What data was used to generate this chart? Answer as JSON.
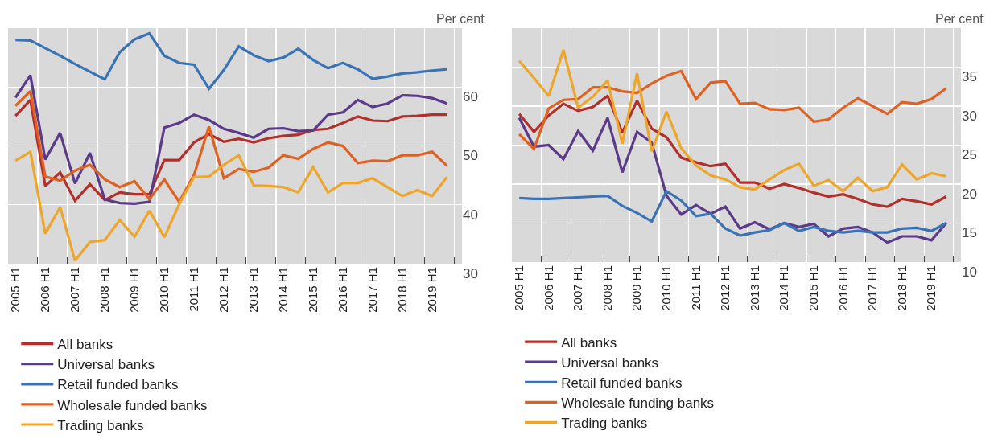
{
  "chart_data": [
    {
      "type": "line",
      "ylabel": "Per cent",
      "categories": [
        "2005 H1",
        null,
        "2006 H1",
        null,
        "2007 H1",
        null,
        "2008 H1",
        null,
        "2009 H1",
        null,
        "2010 H1",
        null,
        "2011 H1",
        null,
        "2012 H1",
        null,
        "2013 H1",
        null,
        "2014 H1",
        null,
        "2015 H1",
        null,
        "2016 H1",
        null,
        "2017 H1",
        null,
        "2018 H1",
        null,
        "2019 H1",
        null
      ],
      "ylim": [
        30,
        70
      ],
      "yticks": [
        30,
        40,
        50,
        60
      ],
      "grid": true,
      "legend": "bottom",
      "series": [
        {
          "name": "All banks",
          "color": "#b22f2b",
          "values": [
            55.1,
            57.8,
            43.2,
            45.5,
            40.7,
            43.5,
            40.8,
            42.1,
            41.8,
            41.8,
            47.6,
            47.6,
            50.6,
            52.0,
            50.7,
            51.2,
            50.6,
            51.3,
            51.7,
            51.9,
            52.7,
            52.9,
            53.9,
            55.0,
            54.3,
            54.2,
            55.0,
            55.1,
            55.3,
            55.3
          ]
        },
        {
          "name": "Universal banks",
          "color": "#5c3a8a",
          "values": [
            58.2,
            62.0,
            47.7,
            52.2,
            43.6,
            48.8,
            40.9,
            40.3,
            40.2,
            40.5,
            53.1,
            53.9,
            55.3,
            54.4,
            52.9,
            52.2,
            51.4,
            52.9,
            53.0,
            52.5,
            52.6,
            55.3,
            55.7,
            57.8,
            56.6,
            57.2,
            58.6,
            58.5,
            58.1,
            57.2
          ]
        },
        {
          "name": "Retail funded banks",
          "color": "#3a73b5",
          "values": [
            68.0,
            67.9,
            66.6,
            65.3,
            63.9,
            62.6,
            61.3,
            65.9,
            68.1,
            69.1,
            65.3,
            64.1,
            63.8,
            59.7,
            62.9,
            66.9,
            65.4,
            64.4,
            65.0,
            66.5,
            64.6,
            63.2,
            64.1,
            63.0,
            61.4,
            61.8,
            62.3,
            62.5,
            62.8,
            63.0
          ]
        },
        {
          "name": "Wholesale funded banks",
          "color": "#e06020",
          "values": [
            56.8,
            59.3,
            44.8,
            44.1,
            45.8,
            46.8,
            44.3,
            43.0,
            44.0,
            41.0,
            44.3,
            40.5,
            45.1,
            53.3,
            44.5,
            46.1,
            45.6,
            46.3,
            48.4,
            47.8,
            49.5,
            50.6,
            50.0,
            47.1,
            47.5,
            47.4,
            48.4,
            48.4,
            49.0,
            46.6
          ]
        },
        {
          "name": "Trading banks",
          "color": "#eda52a",
          "values": [
            47.5,
            49.0,
            35.1,
            39.6,
            30.5,
            33.7,
            34.0,
            37.4,
            34.6,
            39.0,
            34.5,
            40.1,
            44.7,
            44.8,
            46.8,
            48.4,
            43.3,
            43.2,
            43.0,
            42.1,
            46.4,
            42.1,
            43.7,
            43.7,
            44.5,
            43.0,
            41.5,
            42.5,
            41.5,
            44.7
          ]
        }
      ]
    },
    {
      "type": "line",
      "ylabel": "Per cent",
      "categories": [
        "2005 H1",
        null,
        "2006 H1",
        null,
        "2007 H1",
        null,
        "2008 H1",
        null,
        "2009 H1",
        null,
        "2010 H1",
        null,
        "2011 H1",
        null,
        "2012 H1",
        null,
        "2013 H1",
        null,
        "2014 H1",
        null,
        "2015 H1",
        null,
        "2016 H1",
        null,
        "2017 H1",
        null,
        "2018 H1",
        null,
        "2019 H1",
        null
      ],
      "ylim": [
        10,
        40
      ],
      "yticks": [
        10,
        15,
        20,
        25,
        30,
        35
      ],
      "grid": true,
      "legend": "bottom",
      "series": [
        {
          "name": "All banks",
          "color": "#b22f2b",
          "values": [
            29.0,
            26.7,
            28.8,
            30.3,
            29.4,
            29.9,
            31.3,
            26.6,
            30.7,
            27.1,
            26.0,
            23.4,
            22.8,
            22.3,
            22.6,
            20.2,
            20.2,
            19.4,
            20.0,
            19.5,
            18.9,
            18.4,
            18.7,
            18.1,
            17.4,
            17.1,
            18.1,
            17.8,
            17.4,
            18.4
          ]
        },
        {
          "name": "Universal banks",
          "color": "#5c3a8a",
          "values": [
            28.5,
            24.8,
            25.0,
            23.2,
            26.8,
            24.3,
            28.5,
            21.5,
            26.7,
            25.3,
            18.5,
            16.1,
            17.3,
            16.2,
            17.1,
            14.3,
            15.1,
            14.2,
            15.0,
            14.5,
            14.9,
            13.3,
            14.3,
            14.5,
            13.8,
            12.5,
            13.3,
            13.3,
            12.8,
            15.0
          ]
        },
        {
          "name": "Retail funded banks",
          "color": "#3a73b5",
          "values": [
            18.2,
            18.1,
            18.1,
            18.2,
            18.3,
            18.4,
            18.5,
            17.2,
            16.3,
            15.2,
            19.1,
            17.9,
            15.9,
            16.2,
            14.3,
            13.4,
            13.8,
            14.1,
            15.0,
            14.0,
            14.5,
            14.0,
            13.8,
            14.0,
            13.8,
            13.8,
            14.3,
            14.4,
            14.0,
            15.0
          ]
        },
        {
          "name": "Wholesale funding banks",
          "color": "#e06020",
          "values": [
            26.4,
            24.5,
            29.7,
            30.8,
            30.9,
            32.4,
            32.4,
            31.9,
            31.7,
            32.9,
            33.9,
            34.5,
            30.9,
            33.0,
            33.2,
            30.3,
            30.4,
            29.6,
            29.5,
            29.8,
            28.0,
            28.3,
            29.8,
            31.0,
            30.0,
            29.0,
            30.5,
            30.3,
            30.9,
            32.3
          ]
        },
        {
          "name": "Trading banks",
          "color": "#eda52a",
          "values": [
            35.8,
            33.6,
            31.3,
            37.2,
            29.8,
            31.2,
            33.3,
            25.2,
            34.2,
            24.2,
            29.3,
            24.6,
            22.4,
            21.1,
            20.6,
            19.6,
            19.3,
            20.6,
            21.8,
            22.6,
            19.8,
            20.5,
            19.1,
            20.8,
            19.1,
            19.6,
            22.5,
            20.6,
            21.4,
            21.0
          ]
        }
      ]
    }
  ]
}
